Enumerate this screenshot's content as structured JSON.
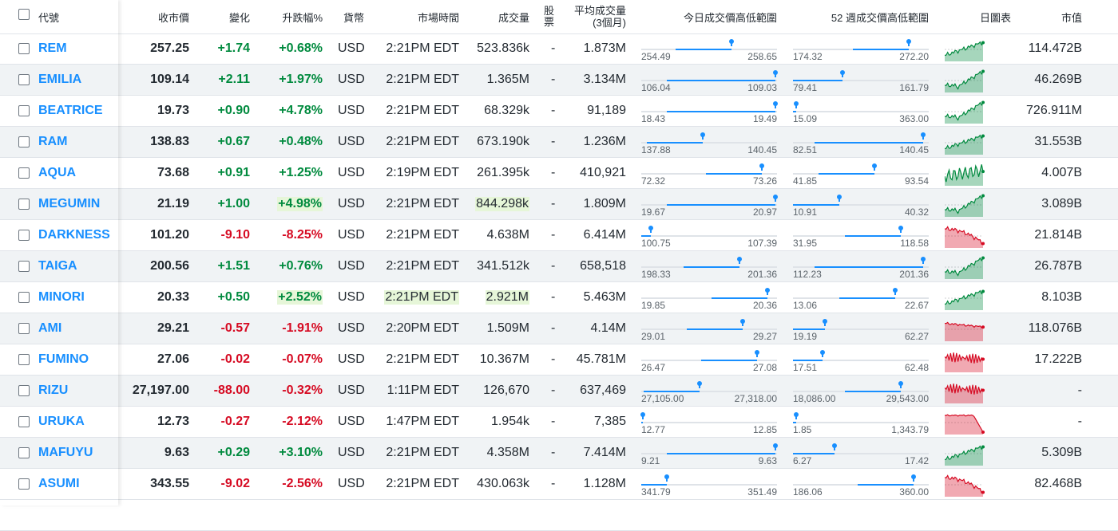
{
  "headers": {
    "symbol": "代號",
    "last": "收市價",
    "change": "變化",
    "pct": "升跌幅%",
    "currency": "貨幣",
    "time": "市場時間",
    "volume": "成交量",
    "shares_l1": "股",
    "shares_l2": "票",
    "avgvol_l1": "平均成交量",
    "avgvol_l2": "(3個月)",
    "day_range": "今日成交價高低範圍",
    "wk52_range": "52 週成交價高低範圍",
    "chart": "日圖表",
    "mcap": "市值"
  },
  "colors": {
    "up": "#008a3e",
    "down": "#d60a22",
    "link": "#188fff"
  },
  "rows": [
    {
      "symbol": "REM",
      "last": "257.25",
      "change": "+1.74",
      "pct": "+0.68%",
      "currency": "USD",
      "time": "2:21PM EDT",
      "volume": "523.836k",
      "shares": "-",
      "avgvol": "1.873M",
      "day_lo": "254.49",
      "day_hi": "258.65",
      "day_cur": 0.67,
      "wk_lo": "174.32",
      "wk_hi": "272.20",
      "wk_cur": 0.86,
      "mcap": "114.472B",
      "dir": "up",
      "trend": "up"
    },
    {
      "symbol": "EMILIA",
      "last": "109.14",
      "change": "+2.11",
      "pct": "+1.97%",
      "currency": "USD",
      "time": "2:21PM EDT",
      "volume": "1.365M",
      "shares": "-",
      "avgvol": "3.134M",
      "day_lo": "106.04",
      "day_hi": "109.03",
      "day_cur": 1.0,
      "wk_lo": "79.41",
      "wk_hi": "161.79",
      "wk_cur": 0.36,
      "mcap": "46.269B",
      "dir": "up",
      "trend": "updown"
    },
    {
      "symbol": "BEATRICE",
      "last": "19.73",
      "change": "+0.90",
      "pct": "+4.78%",
      "currency": "USD",
      "time": "2:21PM EDT",
      "volume": "68.329k",
      "shares": "-",
      "avgvol": "91,189",
      "day_lo": "18.43",
      "day_hi": "19.49",
      "day_cur": 1.0,
      "wk_lo": "15.09",
      "wk_hi": "363.00",
      "wk_cur": 0.01,
      "mcap": "726.911M",
      "dir": "up",
      "trend": "updown"
    },
    {
      "symbol": "RAM",
      "last": "138.83",
      "change": "+0.67",
      "pct": "+0.48%",
      "currency": "USD",
      "time": "2:21PM EDT",
      "volume": "673.190k",
      "shares": "-",
      "avgvol": "1.236M",
      "day_lo": "137.88",
      "day_hi": "140.45",
      "day_cur": 0.45,
      "wk_lo": "82.51",
      "wk_hi": "140.45",
      "wk_cur": 0.97,
      "mcap": "31.553B",
      "dir": "up",
      "trend": "up"
    },
    {
      "symbol": "AQUA",
      "last": "73.68",
      "change": "+0.91",
      "pct": "+1.25%",
      "currency": "USD",
      "time": "2:19PM EDT",
      "volume": "261.395k",
      "shares": "-",
      "avgvol": "410,921",
      "day_lo": "72.32",
      "day_hi": "73.26",
      "day_cur": 0.9,
      "wk_lo": "41.85",
      "wk_hi": "93.54",
      "wk_cur": 0.6,
      "mcap": "4.007B",
      "dir": "up",
      "trend": "mixed"
    },
    {
      "symbol": "MEGUMIN",
      "last": "21.19",
      "change": "+1.00",
      "pct": "+4.98%",
      "currency": "USD",
      "time": "2:21PM EDT",
      "volume": "844.298k",
      "shares": "-",
      "avgvol": "1.809M",
      "day_lo": "19.67",
      "day_hi": "20.97",
      "day_cur": 1.0,
      "wk_lo": "10.91",
      "wk_hi": "40.32",
      "wk_cur": 0.34,
      "mcap": "3.089B",
      "dir": "up",
      "trend": "updown"
    },
    {
      "symbol": "DARKNESS",
      "last": "101.20",
      "change": "-9.10",
      "pct": "-8.25%",
      "currency": "USD",
      "time": "2:21PM EDT",
      "volume": "4.638M",
      "shares": "-",
      "avgvol": "6.414M",
      "day_lo": "100.75",
      "day_hi": "107.39",
      "day_cur": 0.06,
      "wk_lo": "31.95",
      "wk_hi": "118.58",
      "wk_cur": 0.8,
      "mcap": "21.814B",
      "dir": "down",
      "trend": "down"
    },
    {
      "symbol": "TAIGA",
      "last": "200.56",
      "change": "+1.51",
      "pct": "+0.76%",
      "currency": "USD",
      "time": "2:21PM EDT",
      "volume": "341.512k",
      "shares": "-",
      "avgvol": "658,518",
      "day_lo": "198.33",
      "day_hi": "201.36",
      "day_cur": 0.73,
      "wk_lo": "112.23",
      "wk_hi": "201.36",
      "wk_cur": 0.97,
      "mcap": "26.787B",
      "dir": "up",
      "trend": "updown"
    },
    {
      "symbol": "MINORI",
      "last": "20.33",
      "change": "+0.50",
      "pct": "+2.52%",
      "currency": "USD",
      "time": "2:21PM EDT",
      "volume": "2.921M",
      "shares": "-",
      "avgvol": "5.463M",
      "day_lo": "19.85",
      "day_hi": "20.36",
      "day_cur": 0.94,
      "wk_lo": "13.06",
      "wk_hi": "22.67",
      "wk_cur": 0.76,
      "mcap": "8.103B",
      "dir": "up",
      "trend": "up"
    },
    {
      "symbol": "AMI",
      "last": "29.21",
      "change": "-0.57",
      "pct": "-1.91%",
      "currency": "USD",
      "time": "2:20PM EDT",
      "volume": "1.509M",
      "shares": "-",
      "avgvol": "4.14M",
      "day_lo": "29.01",
      "day_hi": "29.27",
      "day_cur": 0.75,
      "wk_lo": "19.19",
      "wk_hi": "62.27",
      "wk_cur": 0.23,
      "mcap": "118.076B",
      "dir": "down",
      "trend": "downflat"
    },
    {
      "symbol": "FUMINO",
      "last": "27.06",
      "change": "-0.02",
      "pct": "-0.07%",
      "currency": "USD",
      "time": "2:21PM EDT",
      "volume": "10.367M",
      "shares": "-",
      "avgvol": "45.781M",
      "day_lo": "26.47",
      "day_hi": "27.08",
      "day_cur": 0.86,
      "wk_lo": "17.51",
      "wk_hi": "62.48",
      "wk_cur": 0.21,
      "mcap": "17.222B",
      "dir": "down",
      "trend": "downnoise"
    },
    {
      "symbol": "RIZU",
      "last": "27,197.00",
      "change": "-88.00",
      "pct": "-0.32%",
      "currency": "USD",
      "time": "1:11PM EDT",
      "volume": "126,670",
      "shares": "-",
      "avgvol": "637,469",
      "day_lo": "27,105.00",
      "day_hi": "27,318.00",
      "day_cur": 0.43,
      "wk_lo": "18,086.00",
      "wk_hi": "29,543.00",
      "wk_cur": 0.8,
      "mcap": "-",
      "dir": "down",
      "trend": "downnoise"
    },
    {
      "symbol": "URUKA",
      "last": "12.73",
      "change": "-0.27",
      "pct": "-2.12%",
      "currency": "USD",
      "time": "1:47PM EDT",
      "volume": "1.954k",
      "shares": "-",
      "avgvol": "7,385",
      "day_lo": "12.77",
      "day_hi": "12.85",
      "day_cur": 0.0,
      "wk_lo": "1.85",
      "wk_hi": "1,343.79",
      "wk_cur": 0.01,
      "mcap": "-",
      "dir": "down",
      "trend": "downend"
    },
    {
      "symbol": "MAFUYU",
      "last": "9.63",
      "change": "+0.29",
      "pct": "+3.10%",
      "currency": "USD",
      "time": "2:21PM EDT",
      "volume": "4.358M",
      "shares": "-",
      "avgvol": "7.414M",
      "day_lo": "9.21",
      "day_hi": "9.63",
      "day_cur": 1.0,
      "wk_lo": "6.27",
      "wk_hi": "17.42",
      "wk_cur": 0.3,
      "mcap": "5.309B",
      "dir": "up",
      "trend": "up"
    },
    {
      "symbol": "ASUMI",
      "last": "343.55",
      "change": "-9.02",
      "pct": "-2.56%",
      "currency": "USD",
      "time": "2:21PM EDT",
      "volume": "430.063k",
      "shares": "-",
      "avgvol": "1.128M",
      "day_lo": "341.79",
      "day_hi": "351.49",
      "day_cur": 0.18,
      "wk_lo": "186.06",
      "wk_hi": "360.00",
      "wk_cur": 0.9,
      "mcap": "82.468B",
      "dir": "down",
      "trend": "down"
    }
  ]
}
